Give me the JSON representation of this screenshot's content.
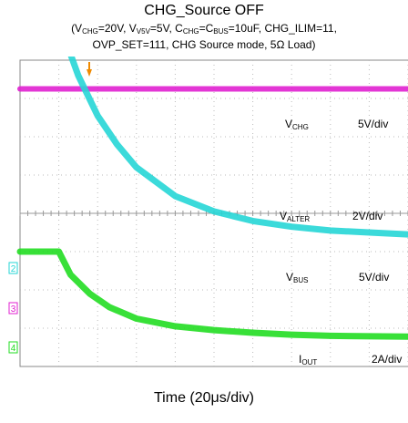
{
  "chart_data": {
    "type": "line",
    "title": "CHG_Source OFF",
    "conditions": {
      "line1": {
        "vchg": "(V",
        "vchg_sub": "CHG",
        "vchg_val": "=20V, V",
        "v5v_sub": "V5V",
        "v5v_val": "=5V, C",
        "cchg_sub": "CHG",
        "cchg_eq": "=C",
        "cbus_sub": "BUS",
        "rest": "=10uF, CHG_ILIM=11,"
      },
      "line2": "OVP_SET=111, CHG Source mode, 5Ω Load)"
    },
    "xlabel": "Time (20μs/div)",
    "divisions": {
      "x": 10,
      "y": 8
    },
    "channel_markers": [
      "2",
      "3",
      "4"
    ],
    "series": [
      {
        "name": "VCHG",
        "label_main": "V",
        "label_sub": "CHG",
        "scale": "5V/div",
        "color": "#1a2fbf",
        "x": [
          0,
          0.5,
          0.6,
          10
        ],
        "y": [
          5.0,
          5.0,
          5.1,
          5.1
        ]
      },
      {
        "name": "VALTER",
        "label_main": "V",
        "label_sub": "ALTER",
        "scale": "2V/div",
        "color": "#e020d0",
        "x": [
          0,
          10
        ],
        "y": [
          3.25,
          3.25
        ]
      },
      {
        "name": "VBUS",
        "label_main": "V",
        "label_sub": "BUS",
        "scale": "5V/div",
        "color": "#26d6d6",
        "x": [
          0,
          1.0,
          1.5,
          2.0,
          2.5,
          3.0,
          4.0,
          5.0,
          6.0,
          7.0,
          8.0,
          9.0,
          10.0
        ],
        "y": [
          5.0,
          5.0,
          3.6,
          2.55,
          1.8,
          1.2,
          0.45,
          0.05,
          -0.2,
          -0.35,
          -0.45,
          -0.5,
          -0.55
        ]
      },
      {
        "name": "IOUT",
        "label_main": "I",
        "label_sub": "OUT",
        "scale": "2A/div",
        "color": "#22dd22",
        "x": [
          0,
          1.0,
          1.3,
          1.8,
          2.3,
          3.0,
          4.0,
          5.0,
          6.0,
          7.0,
          8.0,
          10.0
        ],
        "y": [
          -1.0,
          -1.0,
          -1.6,
          -2.1,
          -2.45,
          -2.75,
          -2.95,
          -3.05,
          -3.12,
          -3.17,
          -3.2,
          -3.22
        ]
      }
    ]
  }
}
